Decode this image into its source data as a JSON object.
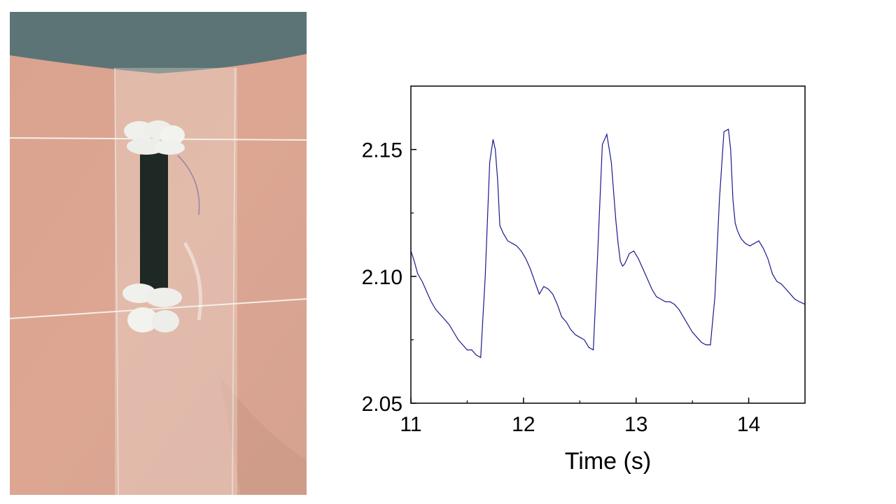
{
  "photo": {
    "subject": "wrist-worn strain sensor photograph",
    "colors": {
      "skin": "#dca692",
      "background": "#5c7475",
      "sensor": "#1e2824",
      "electrode": "#f0f0ec",
      "tape": "#e8d6cf"
    }
  },
  "chart_data": {
    "type": "line",
    "title": "",
    "xlabel": "Time (s)",
    "ylabel": "",
    "xlim": [
      11,
      14.5
    ],
    "ylim": [
      2.05,
      2.175
    ],
    "xticks": [
      "11",
      "12",
      "13",
      "14"
    ],
    "yticks": [
      "2.05",
      "2.10",
      "2.15"
    ],
    "grid": false,
    "line_color": "#1a1a8c",
    "series": [
      {
        "x": [
          11.0,
          11.03,
          11.06,
          11.1,
          11.14,
          11.18,
          11.22,
          11.26,
          11.3,
          11.34,
          11.38,
          11.42,
          11.46,
          11.5,
          11.54,
          11.58,
          11.62,
          11.66,
          11.7,
          11.73,
          11.75,
          11.77,
          11.79,
          11.82,
          11.86,
          11.9,
          11.94,
          11.98,
          12.02,
          12.06,
          12.1,
          12.14,
          12.18,
          12.22,
          12.26,
          12.3,
          12.34,
          12.38,
          12.42,
          12.46,
          12.5,
          12.54,
          12.58,
          12.62,
          12.66,
          12.7,
          12.74,
          12.78,
          12.82,
          12.84,
          12.86,
          12.88,
          12.9,
          12.94,
          12.98,
          13.02,
          13.06,
          13.1,
          13.14,
          13.18,
          13.22,
          13.26,
          13.3,
          13.34,
          13.38,
          13.42,
          13.46,
          13.5,
          13.54,
          13.58,
          13.62,
          13.66,
          13.7,
          13.74,
          13.78,
          13.82,
          13.84,
          13.86,
          13.88,
          13.9,
          13.93,
          13.97,
          14.01,
          14.05,
          14.09,
          14.13,
          14.17,
          14.21,
          14.25,
          14.29,
          14.33,
          14.37,
          14.41,
          14.45,
          14.5
        ],
        "y": [
          2.11,
          2.106,
          2.101,
          2.098,
          2.094,
          2.09,
          2.087,
          2.085,
          2.083,
          2.081,
          2.078,
          2.075,
          2.073,
          2.071,
          2.071,
          2.069,
          2.068,
          2.1,
          2.145,
          2.154,
          2.15,
          2.138,
          2.12,
          2.117,
          2.114,
          2.113,
          2.112,
          2.11,
          2.107,
          2.103,
          2.098,
          2.093,
          2.096,
          2.095,
          2.093,
          2.089,
          2.084,
          2.082,
          2.079,
          2.077,
          2.076,
          2.075,
          2.072,
          2.071,
          2.11,
          2.152,
          2.156,
          2.145,
          2.122,
          2.113,
          2.106,
          2.104,
          2.105,
          2.109,
          2.11,
          2.107,
          2.103,
          2.099,
          2.095,
          2.092,
          2.091,
          2.09,
          2.09,
          2.089,
          2.087,
          2.084,
          2.081,
          2.078,
          2.076,
          2.074,
          2.073,
          2.073,
          2.092,
          2.13,
          2.157,
          2.158,
          2.15,
          2.13,
          2.121,
          2.118,
          2.115,
          2.113,
          2.112,
          2.113,
          2.114,
          2.111,
          2.107,
          2.101,
          2.098,
          2.097,
          2.095,
          2.093,
          2.091,
          2.09,
          2.089
        ]
      }
    ]
  }
}
